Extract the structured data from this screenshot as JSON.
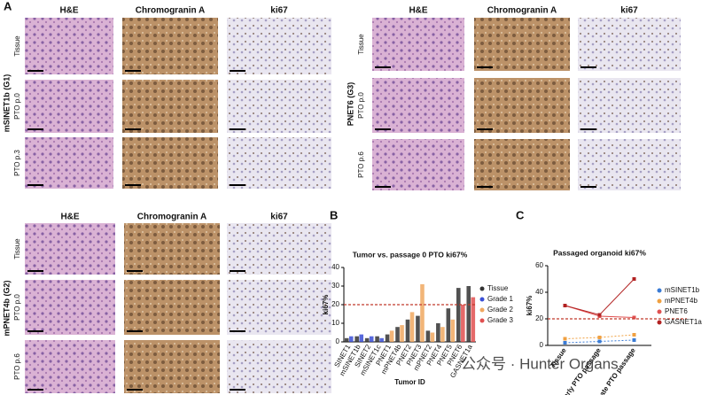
{
  "panel_a": {
    "label": "A",
    "columns": [
      "H&E",
      "Chromogranin A",
      "ki67"
    ],
    "groups": [
      {
        "name": "mSINET1b (G1)",
        "rows": [
          "Tissue",
          "PTO p.0",
          "PTO p.3"
        ]
      },
      {
        "name": "PNET6 (G3)",
        "rows": [
          "Tissue",
          "PTO p.0",
          "PTO p.6"
        ]
      },
      {
        "name": "mPNET4b (G2)",
        "rows": [
          "Tissue",
          "PTO p.0",
          "PTO p.6"
        ]
      }
    ]
  },
  "chart_data": [
    {
      "type": "bar",
      "panel": "B",
      "title": "Tumor vs. passage 0 PTO ki67%",
      "y_label": "ki67%",
      "x_label": "Tumor ID",
      "categories": [
        "SINET1",
        "mSINET1b",
        "SINET2",
        "mSINET1c",
        "PNET1",
        "mPNET4b",
        "PNET2",
        "PNET3",
        "mPNET2",
        "PNET4",
        "PNET5",
        "PNET6",
        "GASNET1a"
      ],
      "series": [
        {
          "name": "Tissue",
          "color": "#333333",
          "values": [
            2,
            3,
            2,
            3,
            4,
            8,
            12,
            14,
            6,
            10,
            18,
            29,
            30
          ]
        },
        {
          "name": "Grade 1",
          "color": "#3a4fd6",
          "values": [
            3,
            4,
            3,
            2,
            null,
            null,
            null,
            null,
            null,
            null,
            null,
            null,
            null
          ]
        },
        {
          "name": "Grade 2",
          "color": "#f0a860",
          "values": [
            null,
            null,
            null,
            null,
            6,
            9,
            16,
            31,
            5,
            8,
            12,
            null,
            null
          ]
        },
        {
          "name": "Grade 3",
          "color": "#e05050",
          "values": [
            null,
            null,
            null,
            null,
            null,
            null,
            null,
            null,
            null,
            null,
            null,
            20,
            24
          ]
        }
      ],
      "ylim": [
        0,
        40
      ],
      "yticks": [
        0,
        10,
        20,
        30,
        40
      ],
      "reference_line": 20,
      "reference_color": "#c0392b"
    },
    {
      "type": "line",
      "panel": "C",
      "title": "Passaged organoid ki67%",
      "y_label": "ki67%",
      "categories": [
        "Tissue",
        "Early PTO passage",
        "Late PTO passage"
      ],
      "series": [
        {
          "name": "mSINET1b",
          "color": "#3a7bd5",
          "values": [
            2,
            3,
            4
          ]
        },
        {
          "name": "mPNET4b",
          "color": "#f0a040",
          "values": [
            5,
            6,
            8
          ]
        },
        {
          "name": "PNET6",
          "color": "#e05050",
          "values": [
            30,
            22,
            21
          ]
        },
        {
          "name": "GASNET1a",
          "color": "#b22222",
          "values": [
            30,
            23,
            50
          ]
        }
      ],
      "ylim": [
        0,
        60
      ],
      "yticks": [
        0,
        20,
        40,
        60
      ],
      "reference_line": 20,
      "reference_color": "#c0392b"
    }
  ],
  "watermark": "公众号 · Hunter Organs"
}
